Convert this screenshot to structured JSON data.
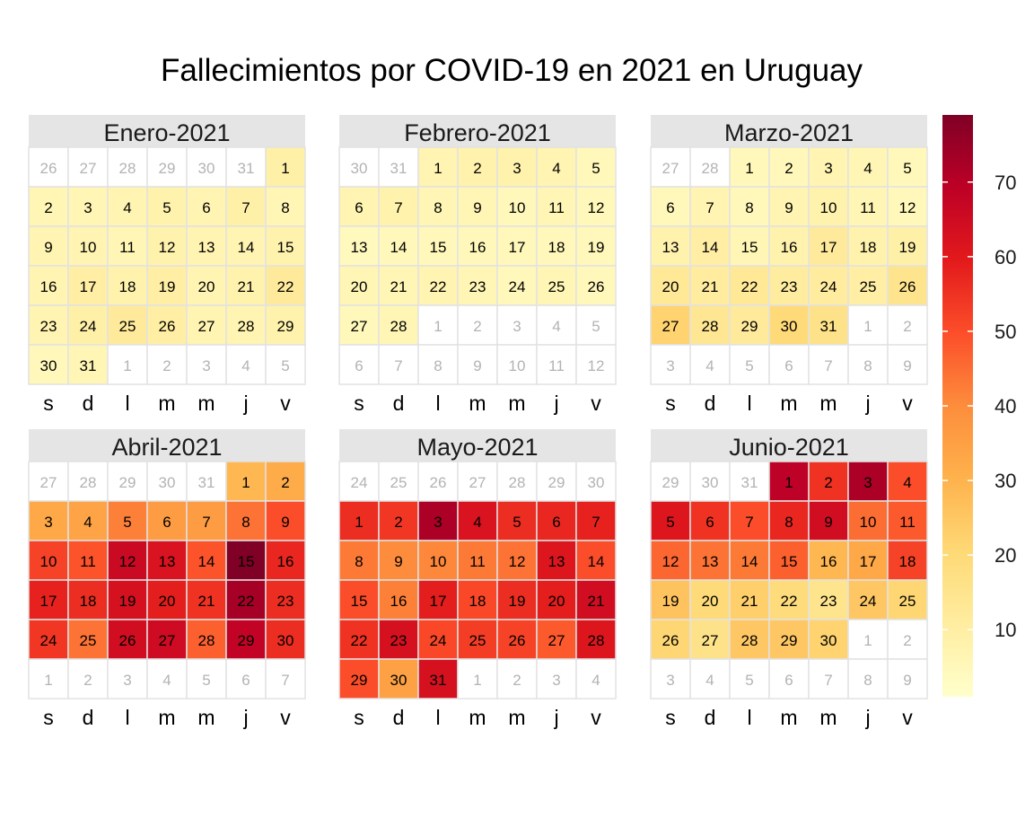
{
  "chart_data": {
    "type": "heatmap",
    "title": "Fallecimientos por COVID-19 en 2021 en Uruguay",
    "weekday_labels": [
      "s",
      "d",
      "l",
      "m",
      "m",
      "j",
      "v"
    ],
    "legend": {
      "placement": "right",
      "range": [
        1,
        79
      ],
      "ticks": [
        10,
        20,
        30,
        40,
        50,
        60,
        70
      ],
      "colors": [
        "#ffffcc",
        "#ffeda0",
        "#fed976",
        "#feb24c",
        "#fd8d3c",
        "#fc4e2a",
        "#e31a1c",
        "#bd0026",
        "#800026"
      ]
    },
    "months": [
      {
        "name": "Enero-2021",
        "days": 31,
        "leading_days": [
          26,
          27,
          28,
          29,
          30,
          31
        ],
        "trailing_days": [
          1,
          2,
          3,
          4,
          5
        ],
        "values": [
          9,
          6,
          6,
          7,
          8,
          7,
          9,
          6,
          7,
          7,
          6,
          8,
          7,
          7,
          8,
          7,
          10,
          8,
          10,
          7,
          8,
          12,
          7,
          9,
          12,
          10,
          7,
          7,
          8,
          5,
          6
        ]
      },
      {
        "name": "Febrero-2021",
        "days": 28,
        "leading_days": [
          30,
          31
        ],
        "trailing_days": [
          1,
          2,
          3,
          4,
          5,
          6,
          7,
          8,
          9,
          10,
          11,
          12
        ],
        "values": [
          7,
          8,
          8,
          7,
          5,
          7,
          8,
          6,
          6,
          5,
          6,
          5,
          4,
          5,
          5,
          5,
          5,
          5,
          5,
          6,
          6,
          7,
          6,
          5,
          6,
          5,
          5,
          6
        ]
      },
      {
        "name": "Marzo-2021",
        "days": 31,
        "leading_days": [
          27,
          28
        ],
        "trailing_days": [
          1,
          2,
          3,
          4,
          5,
          6,
          7,
          8,
          9
        ],
        "values": [
          5,
          5,
          7,
          6,
          5,
          5,
          7,
          5,
          7,
          8,
          6,
          5,
          8,
          10,
          6,
          8,
          12,
          8,
          9,
          13,
          11,
          13,
          11,
          11,
          10,
          15,
          22,
          14,
          12,
          20,
          16
        ]
      },
      {
        "name": "Abril-2021",
        "days": 30,
        "leading_days": [
          27,
          28,
          29,
          30,
          31
        ],
        "trailing_days": [
          1,
          2,
          3,
          4,
          5,
          6,
          7
        ],
        "values": [
          29,
          32,
          33,
          34,
          42,
          36,
          36,
          44,
          50,
          52,
          49,
          66,
          62,
          49,
          79,
          57,
          58,
          56,
          63,
          59,
          55,
          73,
          56,
          54,
          44,
          64,
          65,
          47,
          68,
          56
        ]
      },
      {
        "name": "Mayo-2021",
        "days": 31,
        "leading_days": [
          24,
          25,
          26,
          27,
          28,
          29,
          30
        ],
        "trailing_days": [
          1,
          2,
          3,
          4
        ],
        "values": [
          56,
          54,
          72,
          62,
          56,
          57,
          58,
          43,
          40,
          41,
          43,
          44,
          61,
          50,
          50,
          42,
          59,
          51,
          56,
          59,
          64,
          55,
          63,
          51,
          53,
          52,
          48,
          61,
          50,
          35,
          63
        ]
      },
      {
        "name": "Junio-2021",
        "days": 30,
        "leading_days": [
          29,
          30,
          31
        ],
        "trailing_days": [
          1,
          2,
          3,
          4,
          5,
          6,
          7,
          8,
          9
        ],
        "values": [
          69,
          55,
          72,
          50,
          61,
          55,
          50,
          57,
          64,
          45,
          48,
          46,
          44,
          43,
          47,
          29,
          33,
          52,
          26,
          20,
          23,
          19,
          15,
          25,
          21,
          21,
          16,
          25,
          25,
          22
        ]
      }
    ]
  }
}
